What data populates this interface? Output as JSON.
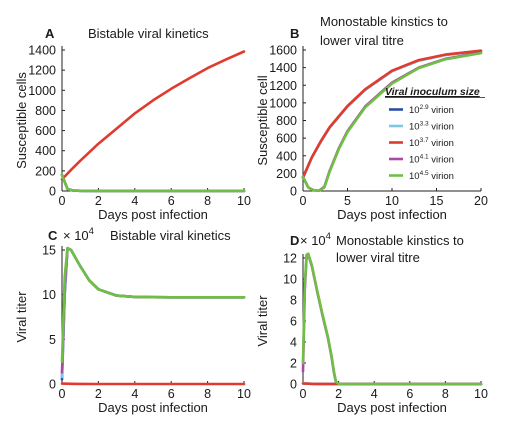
{
  "chart_data": [
    {
      "panel": "A",
      "type": "line",
      "title": "Bistable viral kinetics",
      "xlabel": "Days post infection",
      "ylabel": "Susceptible cells",
      "xlim": [
        0,
        10
      ],
      "ylim": [
        0,
        1400
      ],
      "xticks": [
        "0",
        "2",
        "4",
        "6",
        "8",
        "10"
      ],
      "yticks": [
        "0",
        "200",
        "400",
        "600",
        "800",
        "1000",
        "1200",
        "1400"
      ],
      "series": [
        {
          "color": "#2b4fa6",
          "x": [
            0,
            0.3,
            0.6,
            1,
            2,
            4,
            6,
            8,
            10
          ],
          "y": [
            160,
            20,
            5,
            2,
            1,
            1,
            1,
            1,
            1
          ]
        },
        {
          "color": "#7ec8e3",
          "x": [
            0,
            0.3,
            0.6,
            1,
            2,
            4,
            6,
            8,
            10
          ],
          "y": [
            160,
            20,
            5,
            2,
            1,
            1,
            1,
            1,
            1
          ]
        },
        {
          "color": "#e03b2f",
          "x": [
            0,
            0.5,
            1,
            2,
            3,
            4,
            5,
            6,
            7,
            8,
            9,
            10
          ],
          "y": [
            115,
            210,
            300,
            470,
            620,
            770,
            900,
            1015,
            1120,
            1220,
            1305,
            1385
          ]
        },
        {
          "color": "#a94aa4",
          "x": [
            0,
            0.3,
            0.6,
            1,
            2,
            4,
            6,
            8,
            10
          ],
          "y": [
            160,
            20,
            5,
            2,
            1,
            1,
            1,
            1,
            1
          ]
        },
        {
          "color": "#6fbf44",
          "x": [
            0,
            0.3,
            0.6,
            1,
            2,
            4,
            6,
            8,
            10
          ],
          "y": [
            160,
            20,
            5,
            2,
            1,
            1,
            1,
            1,
            1
          ]
        }
      ]
    },
    {
      "panel": "B",
      "type": "line",
      "title": "Monostable kinstics to",
      "subtitle": "lower viral titre",
      "xlabel": "Days post infection",
      "ylabel": "Susceptible cell",
      "xlim": [
        0,
        20
      ],
      "ylim": [
        0,
        1600
      ],
      "xticks": [
        "0",
        "5",
        "10",
        "15",
        "20"
      ],
      "yticks": [
        "0",
        "200",
        "400",
        "600",
        "800",
        "1000",
        "1200",
        "1400",
        "1600"
      ],
      "legend": {
        "title": "Viral inoculum size",
        "placement": "right",
        "entries": [
          {
            "base": "10",
            "exp": "2.9",
            "unit": " virion",
            "color": "#2b4fa6"
          },
          {
            "base": "10",
            "exp": "3.3",
            "unit": " virion",
            "color": "#7ec8e3"
          },
          {
            "base": "10",
            "exp": "3.7",
            "unit": " virion",
            "color": "#e03b2f"
          },
          {
            "base": "10",
            "exp": "4.1",
            "unit": " virion",
            "color": "#a94aa4"
          },
          {
            "base": "10",
            "exp": "4.5",
            "unit": " virion",
            "color": "#6fbf44"
          }
        ]
      },
      "series": [
        {
          "color": "#2b4fa6",
          "x": [
            0,
            1,
            2,
            3,
            5,
            7,
            10,
            13,
            16,
            20
          ],
          "y": [
            150,
            380,
            560,
            720,
            960,
            1150,
            1360,
            1480,
            1545,
            1590
          ]
        },
        {
          "color": "#7ec8e3",
          "x": [
            0,
            1,
            2,
            3,
            5,
            7,
            10,
            13,
            16,
            20
          ],
          "y": [
            150,
            380,
            560,
            720,
            960,
            1150,
            1360,
            1480,
            1545,
            1590
          ]
        },
        {
          "color": "#e03b2f",
          "x": [
            0,
            1,
            2,
            3,
            5,
            7,
            10,
            13,
            16,
            20
          ],
          "y": [
            155,
            385,
            565,
            725,
            965,
            1155,
            1365,
            1485,
            1548,
            1592
          ]
        },
        {
          "color": "#a94aa4",
          "x": [
            0,
            0.6,
            1.2,
            1.8,
            2.4,
            3,
            4,
            5,
            7,
            10,
            13,
            16,
            20
          ],
          "y": [
            160,
            40,
            8,
            3,
            50,
            230,
            480,
            680,
            960,
            1230,
            1400,
            1500,
            1570
          ]
        },
        {
          "color": "#6fbf44",
          "x": [
            0,
            0.6,
            1.2,
            1.8,
            2.4,
            3,
            4,
            5,
            7,
            10,
            13,
            16,
            20
          ],
          "y": [
            160,
            40,
            8,
            3,
            40,
            220,
            470,
            670,
            950,
            1220,
            1395,
            1495,
            1565
          ]
        }
      ]
    },
    {
      "panel": "C",
      "type": "line",
      "title": "Bistable viral kinetics",
      "multiplier": {
        "base": "10",
        "exp": "4"
      },
      "xlabel": "Days post infection",
      "ylabel": "Viral titer",
      "xlim": [
        0,
        10
      ],
      "ylim": [
        0,
        15
      ],
      "xticks": [
        "0",
        "2",
        "4",
        "6",
        "8",
        "10"
      ],
      "yticks": [
        "0",
        "5",
        "10",
        "15"
      ],
      "series": [
        {
          "color": "#2b4fa6",
          "x": [
            0,
            0.15,
            0.3,
            0.5,
            1,
            1.5,
            2,
            3,
            4,
            5,
            6,
            8,
            10
          ],
          "y": [
            0.5,
            10,
            15.2,
            15,
            13.2,
            11.6,
            10.6,
            9.9,
            9.75,
            9.72,
            9.7,
            9.7,
            9.7
          ]
        },
        {
          "color": "#7ec8e3",
          "x": [
            0,
            0.15,
            0.3,
            0.5,
            1,
            1.5,
            2,
            3,
            4,
            5,
            6,
            8,
            10
          ],
          "y": [
            0.8,
            10.5,
            15.2,
            15,
            13.2,
            11.6,
            10.6,
            9.9,
            9.75,
            9.72,
            9.7,
            9.7,
            9.7
          ]
        },
        {
          "color": "#e03b2f",
          "x": [
            0,
            0.5,
            1,
            2,
            4,
            6,
            8,
            10
          ],
          "y": [
            0.05,
            0.02,
            0.01,
            0,
            0,
            0,
            0,
            0
          ]
        },
        {
          "color": "#a94aa4",
          "x": [
            0,
            0.15,
            0.3,
            0.5,
            1,
            1.5,
            2,
            3,
            4,
            5,
            6,
            8,
            10
          ],
          "y": [
            1.3,
            11,
            15.2,
            15,
            13.2,
            11.6,
            10.6,
            9.9,
            9.75,
            9.72,
            9.7,
            9.7,
            9.7
          ]
        },
        {
          "color": "#6fbf44",
          "x": [
            0,
            0.15,
            0.3,
            0.5,
            1,
            1.5,
            2,
            3,
            4,
            5,
            6,
            8,
            10
          ],
          "y": [
            2.5,
            12,
            15.2,
            15,
            13.2,
            11.6,
            10.6,
            9.9,
            9.75,
            9.72,
            9.7,
            9.7,
            9.7
          ]
        }
      ]
    },
    {
      "panel": "D",
      "type": "line",
      "title": "Monostable kinstics to",
      "subtitle": "lower viral titre",
      "multiplier": {
        "base": "10",
        "exp": "4"
      },
      "xlabel": "Days post infection",
      "ylabel": "Viral titer",
      "xlim": [
        0,
        10
      ],
      "ylim": [
        0,
        12
      ],
      "xticks": [
        "0",
        "2",
        "4",
        "6",
        "8",
        "10"
      ],
      "yticks": [
        "0",
        "2",
        "4",
        "6",
        "8",
        "10",
        "12"
      ],
      "series": [
        {
          "color": "#2b4fa6",
          "x": [
            0,
            0.5,
            1,
            2,
            4,
            6,
            8,
            10
          ],
          "y": [
            0.05,
            0.02,
            0.01,
            0,
            0,
            0,
            0,
            0
          ]
        },
        {
          "color": "#7ec8e3",
          "x": [
            0,
            0.5,
            1,
            2,
            4,
            6,
            8,
            10
          ],
          "y": [
            0.05,
            0.02,
            0.01,
            0,
            0,
            0,
            0,
            0
          ]
        },
        {
          "color": "#e03b2f",
          "x": [
            0,
            0.5,
            1,
            2,
            4,
            6,
            8,
            10
          ],
          "y": [
            0.05,
            0.02,
            0.01,
            0,
            0,
            0,
            0,
            0
          ]
        },
        {
          "color": "#a94aa4",
          "x": [
            0,
            0.1,
            0.2,
            0.3,
            0.5,
            0.8,
            1.1,
            1.4,
            1.6,
            1.75,
            1.85,
            2,
            3,
            5,
            7,
            10
          ],
          "y": [
            1.2,
            9,
            12.2,
            12.3,
            11.2,
            8.8,
            6.5,
            4.4,
            2.6,
            1.0,
            0.2,
            0,
            0,
            0,
            0,
            0
          ]
        },
        {
          "color": "#6fbf44",
          "x": [
            0,
            0.1,
            0.2,
            0.3,
            0.5,
            0.8,
            1.1,
            1.4,
            1.6,
            1.75,
            1.85,
            2,
            3,
            5,
            7,
            10
          ],
          "y": [
            2.0,
            9.5,
            12.3,
            12.4,
            11.3,
            8.9,
            6.6,
            4.5,
            2.7,
            1.1,
            0.25,
            0,
            0,
            0,
            0,
            0
          ]
        }
      ]
    }
  ]
}
